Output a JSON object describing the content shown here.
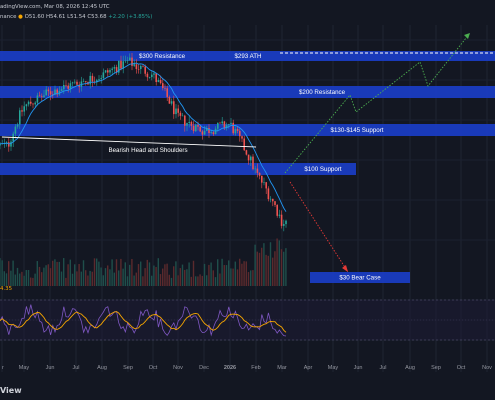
{
  "header": {
    "line1": "adingView.com, Mar 08, 2026 12:45 UTC",
    "line2_prefix": "nance",
    "line2_values": "O51.60  H54.61  L51.54  C53.68",
    "line2_change": "+2.20 (+3.85%)"
  },
  "rsi_label": "4.35",
  "watermark": "View",
  "chart_data": {
    "type": "candlestick",
    "x_ticks": [
      "r",
      "May",
      "Jun",
      "Jul",
      "Aug",
      "Sep",
      "Oct",
      "Nov",
      "Dec",
      "2026",
      "Feb",
      "Mar",
      "Apr",
      "May",
      "Jun",
      "Jul",
      "Aug",
      "Sep",
      "Oct",
      "Nov"
    ],
    "levels": [
      {
        "label": "$300 Resistance",
        "value": 300,
        "color": "#1a3ec7"
      },
      {
        "label": "$293 ATH",
        "value": 293,
        "color": "#1a3ec7"
      },
      {
        "label": "$200 Resistance",
        "value": 200,
        "color": "#1a3ec7"
      },
      {
        "label": "$130-$145 Support",
        "value": 137,
        "color": "#1a3ec7"
      },
      {
        "label": "$100 Support",
        "value": 100,
        "color": "#1a3ec7"
      },
      {
        "label": "$30 Bear Case",
        "value": 30,
        "color": "#1a3ec7"
      }
    ],
    "annotations": [
      {
        "label": "Bearish Head and Shoulders"
      }
    ],
    "ohlc_weekly": [
      {
        "month": "Apr",
        "close": 120
      },
      {
        "month": "May",
        "close": 180
      },
      {
        "month": "Jun",
        "close": 210
      },
      {
        "month": "Jul",
        "close": 230
      },
      {
        "month": "Aug",
        "close": 250
      },
      {
        "month": "Sep",
        "close": 290
      },
      {
        "month": "Oct",
        "close": 250
      },
      {
        "month": "Nov",
        "close": 160
      },
      {
        "month": "Dec",
        "close": 140
      },
      {
        "month": "Jan",
        "close": 150
      },
      {
        "month": "Feb",
        "close": 90
      },
      {
        "month": "Mar",
        "close": 54
      }
    ],
    "colors": {
      "up": "#26a69a",
      "down": "#ef5350",
      "ma": "#2196f3",
      "rsi": "#7e57c2",
      "rsi_ma": "#f7a600",
      "bull_path": "#4caf50",
      "bear_path": "#e53935"
    }
  }
}
